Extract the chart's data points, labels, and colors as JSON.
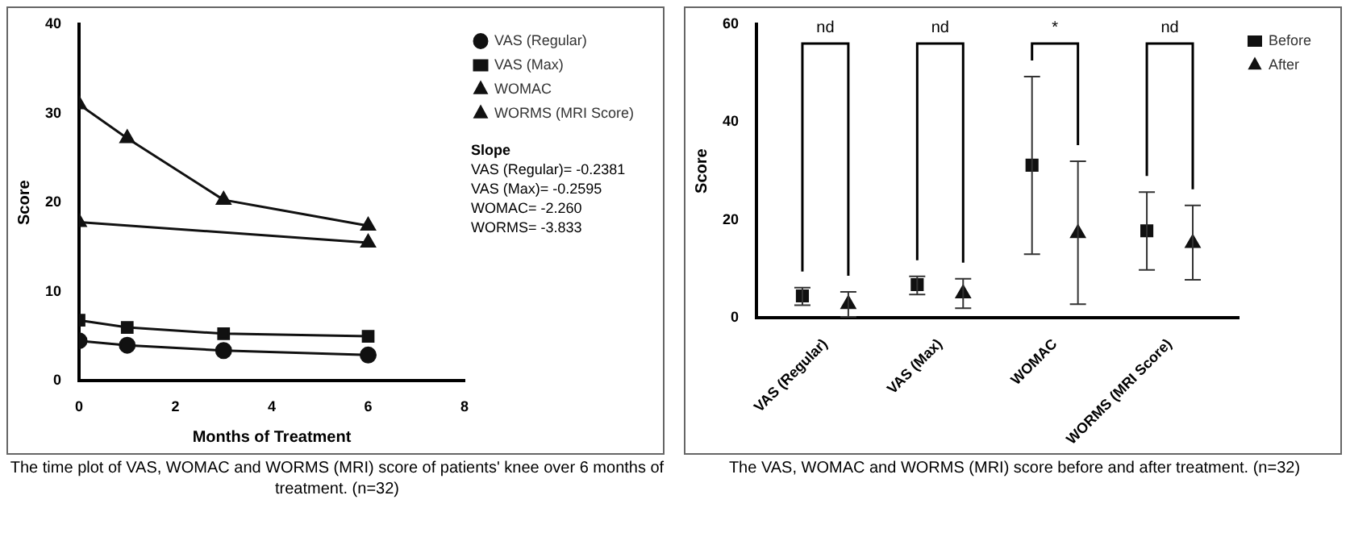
{
  "chart_data": [
    {
      "type": "line",
      "xlabel": "Months of Treatment",
      "ylabel": "Score",
      "xlim": [
        0,
        8
      ],
      "xticks": [
        0,
        2,
        4,
        6,
        8
      ],
      "ylim": [
        0,
        40
      ],
      "yticks": [
        0,
        10,
        20,
        30,
        40
      ],
      "legend": "top right",
      "line_style": "solid",
      "series": [
        {
          "name": "VAS (Regular)",
          "color": "#111111",
          "marker": "circle",
          "x": [
            0,
            1,
            3,
            6
          ],
          "values": [
            4.5,
            4.0,
            3.4,
            2.9
          ]
        },
        {
          "name": "VAS (Max)",
          "color": "#111111",
          "marker": "square",
          "x": [
            0,
            1,
            3,
            6
          ],
          "values": [
            6.8,
            6.0,
            5.3,
            5.0
          ]
        },
        {
          "name": "WOMAC",
          "color": "#111111",
          "marker": "triangle",
          "x": [
            0,
            1,
            3,
            6
          ],
          "values": [
            31,
            27.2,
            20.3,
            17.4
          ]
        },
        {
          "name": "WORMS (MRI Score)",
          "color": "#111111",
          "marker": "triangle",
          "x": [
            0,
            6
          ],
          "values": [
            17.8,
            15.5
          ]
        }
      ],
      "annotations": [
        "Slope",
        "VAS (Regular)= -0.2381",
        "VAS (Max)= -0.2595",
        "WOMAC= -2.260",
        "WORMS= -3.833",
        "The time plot of VAS, WOMAC and WORMS (MRI) score of patients' knee over 6 months of treatment. (n=32)"
      ]
    },
    {
      "type": "scatter",
      "ylabel": "Score",
      "categories": [
        "VAS (Regular)",
        "VAS (Max)",
        "WOMAC",
        "WORMS (MRI Score)"
      ],
      "ylim": [
        0,
        60
      ],
      "yticks": [
        0,
        20,
        40,
        60
      ],
      "legend": "top right",
      "series": [
        {
          "name": "Before",
          "color": "#111111",
          "marker": "square",
          "values": [
            4.5,
            6.8,
            31.2,
            17.8
          ],
          "errors": [
            [
              2.6,
              6.2
            ],
            [
              4.8,
              8.5
            ],
            [
              13,
              49.3
            ],
            [
              9.8,
              25.7
            ]
          ]
        },
        {
          "name": "After",
          "color": "#111111",
          "marker": "triangle",
          "values": [
            2.8,
            5.0,
            17.3,
            15.3
          ],
          "errors": [
            [
              0.2,
              5.3
            ],
            [
              2,
              8
            ],
            [
              2.8,
              32
            ],
            [
              7.8,
              23
            ]
          ]
        }
      ],
      "annotations": [
        "nd",
        "nd",
        "*",
        "nd",
        "The VAS, WOMAC and WORMS (MRI) score before and after treatment. (n=32)"
      ]
    }
  ]
}
